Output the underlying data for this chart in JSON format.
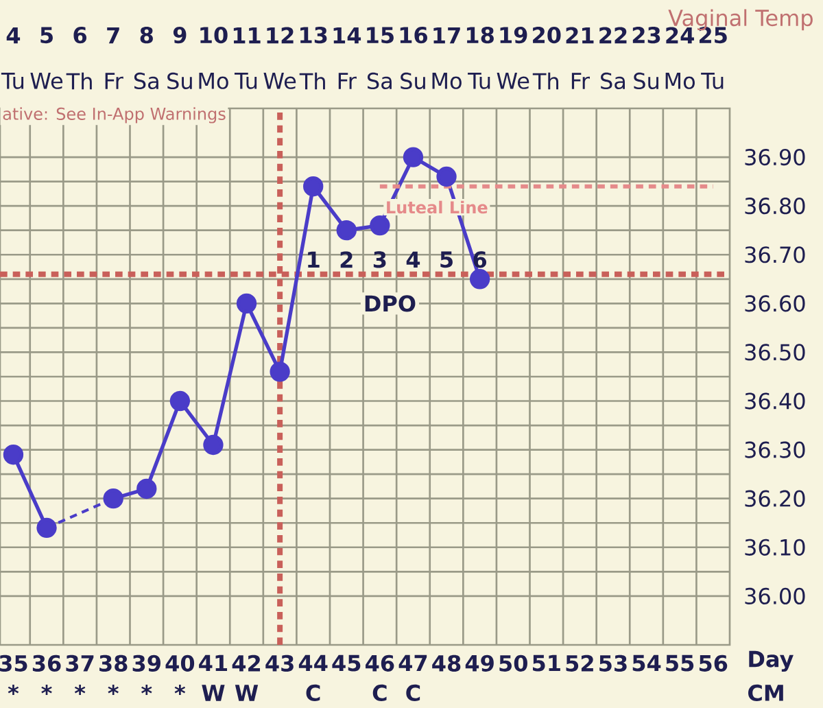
{
  "chart_data": {
    "type": "line",
    "xlim": [
      34.6,
      56.5
    ],
    "ylim": [
      35.9,
      37.0
    ],
    "xticks": [
      35,
      36,
      37,
      38,
      39,
      40,
      41,
      42,
      43,
      44,
      45,
      46,
      47,
      48,
      49,
      50,
      51,
      52,
      53,
      54,
      55,
      56
    ],
    "x2lim": [
      3.6,
      25.5
    ],
    "x2ticks": [
      4,
      5,
      6,
      7,
      8,
      9,
      10,
      11,
      12,
      13,
      14,
      15,
      16,
      17,
      18,
      19,
      20,
      21,
      22,
      23,
      24,
      25
    ],
    "yticks": [
      {
        "value": 36.0,
        "label": "36.00"
      },
      {
        "value": 36.1,
        "label": "36.10"
      },
      {
        "value": 36.2,
        "label": "36.20"
      },
      {
        "value": 36.3,
        "label": "36.30"
      },
      {
        "value": 36.4,
        "label": "36.40"
      },
      {
        "value": 36.5,
        "label": "36.50"
      },
      {
        "value": 36.6,
        "label": "36.60"
      },
      {
        "value": 36.7,
        "label": "36.70"
      },
      {
        "value": 36.8,
        "label": "36.80"
      },
      {
        "value": 36.9,
        "label": "36.90"
      }
    ],
    "grid": true,
    "marker": "circle",
    "line_style": "solid",
    "series": [
      {
        "color": "#4a3cc8",
        "x": [
          35,
          36,
          37,
          38,
          39,
          40,
          41,
          42,
          43,
          44,
          45,
          46,
          47,
          48,
          49
        ],
        "values": [
          36.29,
          36.14,
          null,
          36.2,
          36.22,
          36.4,
          36.31,
          36.6,
          36.46,
          36.84,
          36.75,
          36.76,
          36.9,
          36.86,
          36.65
        ]
      },
      {
        "name": "Luteal Line",
        "color": "#e58a8a",
        "line_style": "dashed",
        "marker": "none",
        "x": [
          46,
          56
        ],
        "values": [
          36.84,
          36.84
        ]
      }
    ],
    "ref_lines": [
      {
        "axis": "y",
        "value": 36.66,
        "color": "#c9605a",
        "line_style": "dashed"
      },
      {
        "axis": "x",
        "value": 43,
        "color": "#c9605a",
        "line_style": "dashed"
      }
    ],
    "annotations": [
      "Vaginal Temp",
      "ative: See In-App Warnings",
      "Day",
      "CM",
      "DPO",
      "1",
      "2",
      "3",
      "4",
      "5",
      "6",
      "Tu",
      "We",
      "Th",
      "Fr",
      "Sa",
      "Su",
      "Mo",
      "Tu",
      "We",
      "Th",
      "Fr",
      "Sa",
      "Su",
      "Mo",
      "Tu",
      "We",
      "Th",
      "Fr",
      "Sa",
      "Su",
      "Mo",
      "Tu",
      "*",
      "*",
      "*",
      "*",
      "*",
      "*",
      "W",
      "W",
      "C",
      "C",
      "C"
    ]
  }
}
